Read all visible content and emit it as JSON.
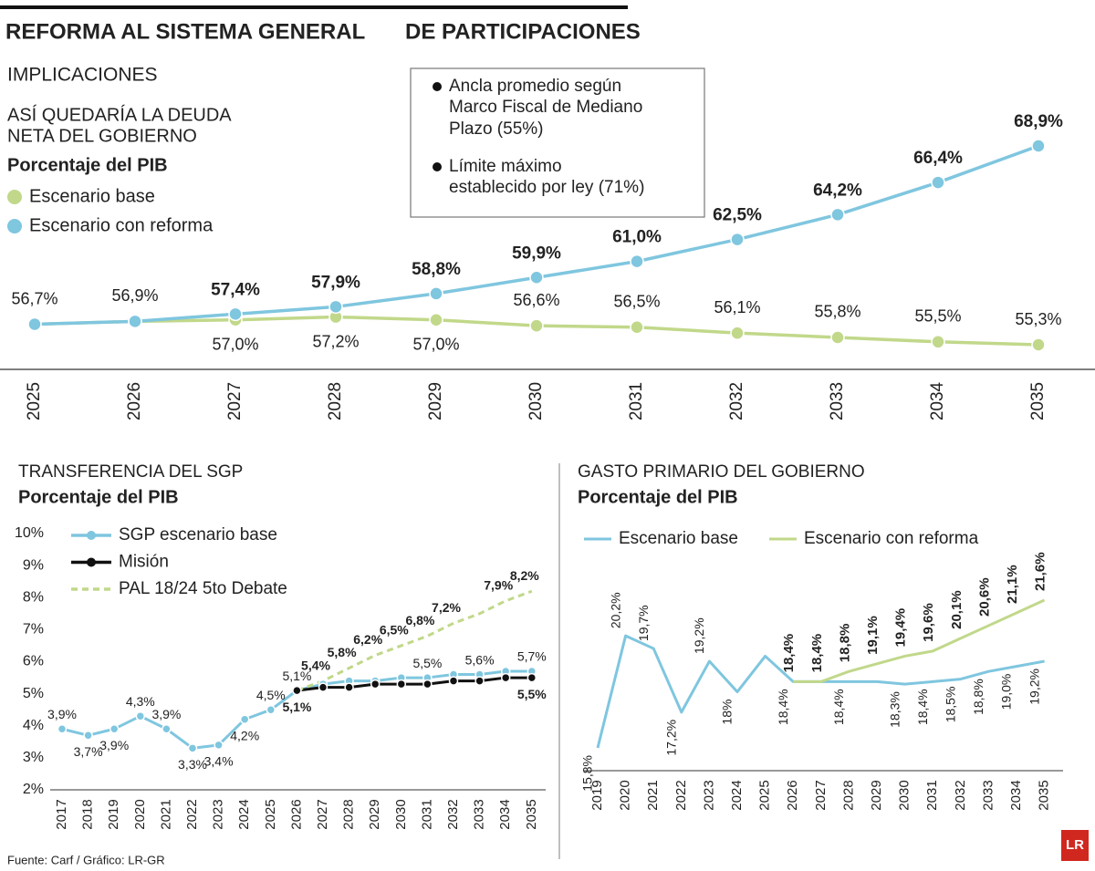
{
  "title": [
    "REFORMA AL SISTEMA GENERAL",
    "DE PARTICIPACIONES"
  ],
  "section": "IMPLICACIONES",
  "source": "Fuente: Carf / Gráfico: LR-GR",
  "logo": "LR",
  "chart_data": [
    {
      "type": "line",
      "title": [
        "ASÍ QUEDARÍA LA DEUDA",
        "NETA DEL GOBIERNO"
      ],
      "subtitle": "Porcentaje del PIB",
      "notes": [
        [
          "Ancla promedio según",
          "Marco Fiscal de Mediano",
          "Plazo (55%)"
        ],
        [
          "Límite máximo",
          "establecido por ley (71%)"
        ]
      ],
      "categories": [
        "2025",
        "2026",
        "2027",
        "2028",
        "2029",
        "2030",
        "2031",
        "2032",
        "2033",
        "2034",
        "2035"
      ],
      "series": [
        {
          "name": "Escenario base",
          "color": "#c1d88a",
          "markers": true,
          "values": [
            56.7,
            56.9,
            57.0,
            57.2,
            57.0,
            56.6,
            56.5,
            56.1,
            55.8,
            55.5,
            55.3
          ],
          "value_labels": [
            "56,7%",
            "56,9%",
            "57,0%",
            "57,2%",
            "57,0%",
            "56,6%",
            "56,5%",
            "56,1%",
            "55,8%",
            "55,5%",
            "55,3%"
          ]
        },
        {
          "name": "Escenario con reforma",
          "color": "#7fc6df",
          "markers": true,
          "values": [
            56.7,
            56.9,
            57.4,
            57.9,
            58.8,
            59.9,
            61.0,
            62.5,
            64.2,
            66.4,
            68.9
          ],
          "value_labels": [
            null,
            null,
            "57,4%",
            "57,9%",
            "58,8%",
            "59,9%",
            "61,0%",
            "62,5%",
            "64,2%",
            "66,4%",
            "68,9%"
          ]
        }
      ]
    },
    {
      "type": "line",
      "title": "TRANSFERENCIA DEL SGP",
      "subtitle": "Porcentaje del PIB",
      "categories": [
        "2017",
        "2018",
        "2019",
        "2020",
        "2021",
        "2022",
        "2023",
        "2024",
        "2025",
        "2026",
        "2027",
        "2028",
        "2029",
        "2030",
        "2031",
        "2032",
        "2033",
        "2034",
        "2035"
      ],
      "ylim": [
        2,
        10
      ],
      "yticks": [
        {
          "value": 2,
          "label": "2%"
        },
        {
          "value": 3,
          "label": "3%"
        },
        {
          "value": 4,
          "label": "4%"
        },
        {
          "value": 5,
          "label": "5%"
        },
        {
          "value": 6,
          "label": "6%"
        },
        {
          "value": 7,
          "label": "7%"
        },
        {
          "value": 8,
          "label": "8%"
        },
        {
          "value": 9,
          "label": "9%"
        },
        {
          "value": 10,
          "label": "10%"
        }
      ],
      "series": [
        {
          "name": "SGP escenario base",
          "color": "#7fc6df",
          "markers": true,
          "values": [
            3.9,
            3.7,
            3.9,
            4.3,
            3.9,
            3.3,
            3.4,
            4.2,
            4.5,
            5.1,
            5.3,
            5.4,
            5.4,
            5.5,
            5.5,
            5.6,
            5.6,
            5.7,
            5.7
          ],
          "value_labels": [
            "3,9%",
            "3,7%",
            "3,9%",
            "4,3%",
            "3,9%",
            "3,3%",
            "3,4%",
            "4,2%",
            "4,5%",
            "5,1%",
            null,
            null,
            null,
            null,
            "5,5%",
            null,
            "5,6%",
            null,
            "5,7%"
          ]
        },
        {
          "name": "Misión",
          "color": "#111111",
          "markers": true,
          "values": [
            null,
            null,
            null,
            null,
            null,
            null,
            null,
            null,
            null,
            5.1,
            5.2,
            5.2,
            5.3,
            5.3,
            5.3,
            5.4,
            5.4,
            5.5,
            5.5
          ],
          "value_labels": [
            null,
            null,
            null,
            null,
            null,
            null,
            null,
            null,
            null,
            "5,1%",
            null,
            null,
            null,
            null,
            null,
            null,
            null,
            null,
            "5,5%"
          ]
        },
        {
          "name": "PAL 18/24 5to Debate",
          "color": "#c1d88a",
          "markers": false,
          "dashed": true,
          "values": [
            null,
            null,
            null,
            null,
            null,
            null,
            null,
            null,
            null,
            5.1,
            5.4,
            5.8,
            6.2,
            6.5,
            6.8,
            7.2,
            7.5,
            7.9,
            8.2
          ],
          "value_labels": [
            null,
            null,
            null,
            null,
            null,
            null,
            null,
            null,
            null,
            null,
            "5,4%",
            "5,8%",
            "6,2%",
            "6,5%",
            "6,8%",
            "7,2%",
            null,
            "7,9%",
            "8,2%"
          ]
        }
      ]
    },
    {
      "type": "line",
      "title": "GASTO PRIMARIO DEL GOBIERNO",
      "subtitle": "Porcentaje del PIB",
      "categories": [
        "2019",
        "2020",
        "2021",
        "2022",
        "2023",
        "2024",
        "2025",
        "2026",
        "2027",
        "2028",
        "2029",
        "2030",
        "2031",
        "2032",
        "2033",
        "2034",
        "2035"
      ],
      "series": [
        {
          "name": "Escenario base",
          "color": "#7fc6df",
          "markers": false,
          "values": [
            15.8,
            20.2,
            19.7,
            17.2,
            19.2,
            18,
            19.4,
            18.4,
            18.4,
            18.4,
            18.4,
            18.3,
            18.4,
            18.5,
            18.8,
            19.0,
            19.2
          ],
          "value_labels": [
            "15,8%",
            "20,2%",
            "19,7%",
            "17,2%",
            "19,2%",
            "18%",
            null,
            "18,4%",
            null,
            "18,4%",
            null,
            "18,3%",
            "18,4%",
            "18,5%",
            "18,8%",
            "19,0%",
            "19,2%"
          ]
        },
        {
          "name": "Escenario con reforma",
          "color": "#c1d88a",
          "markers": false,
          "values": [
            null,
            null,
            null,
            null,
            null,
            null,
            null,
            18.4,
            18.4,
            18.8,
            19.1,
            19.4,
            19.6,
            20.1,
            20.6,
            21.1,
            21.6
          ],
          "value_labels": [
            null,
            null,
            null,
            null,
            null,
            null,
            null,
            "18,4%",
            "18,4%",
            "18,8%",
            "19,1%",
            "19,4%",
            "19,6%",
            "20,1%",
            "20,6%",
            "21,1%",
            "21,6%"
          ]
        }
      ]
    }
  ]
}
